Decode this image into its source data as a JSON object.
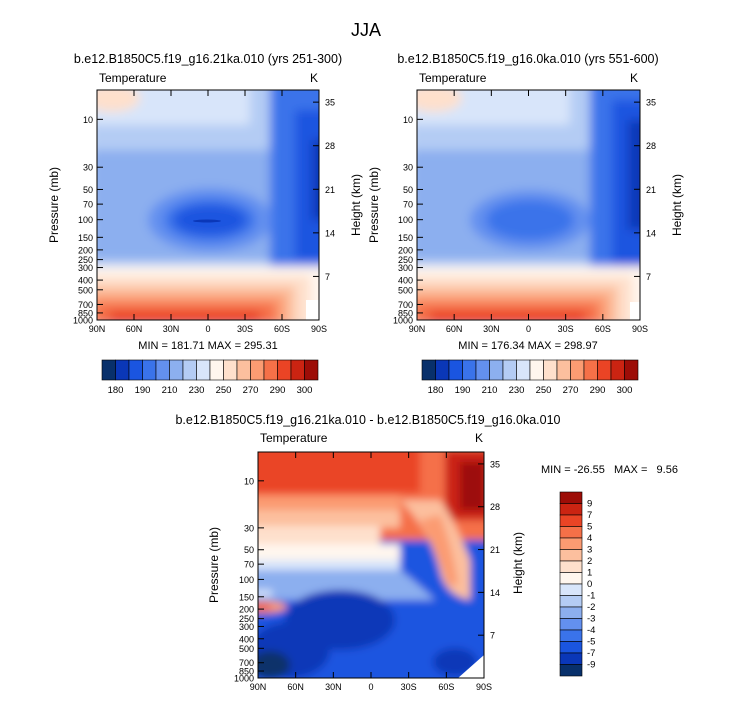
{
  "figure": {
    "title": "JJA"
  },
  "colors": {
    "scale": [
      "#08306b",
      "#0a37b8",
      "#1a55e0",
      "#3a73ea",
      "#6390ef",
      "#8cafef",
      "#b4ccf4",
      "#d8e5fa",
      "#fff6ee",
      "#fee0cc",
      "#fcbf9e",
      "#fb9b72",
      "#f57048",
      "#ea4425",
      "#cb2412",
      "#9d0d07"
    ],
    "diff_scale": [
      "#08306b",
      "#0a37b8",
      "#1a55e0",
      "#3a73ea",
      "#6390ef",
      "#8cafef",
      "#b4ccf4",
      "#d8e5fa",
      "#fff6ee",
      "#fee0cc",
      "#fcbf9e",
      "#fb9b72",
      "#f57048",
      "#ea4425",
      "#cb2412",
      "#9d0d07"
    ]
  },
  "chart_data": [
    {
      "type": "heatmap",
      "title": "b.e12.B1850C5.f19_g16.21ka.010 (yrs 251-300)",
      "variable": "Temperature",
      "units": "K",
      "xlabel": "",
      "ylabel": "Pressure (mb)",
      "y2label": "Height (km)",
      "x_ticks": [
        "90N",
        "60N",
        "30N",
        "0",
        "30S",
        "60S",
        "90S"
      ],
      "y_ticks": [
        "10",
        "30",
        "50",
        "70",
        "100",
        "150",
        "200",
        "250",
        "300",
        "400",
        "500",
        "700",
        "850",
        "1000"
      ],
      "y2_ticks": [
        "35",
        "28",
        "21",
        "14",
        "7"
      ],
      "stats": "MIN = 181.71   MAX = 295.31",
      "colorbar_labels": [
        "180",
        "190",
        "210",
        "230",
        "250",
        "270",
        "290",
        "300"
      ]
    },
    {
      "type": "heatmap",
      "title": "b.e12.B1850C5.f19_g16.0ka.010 (yrs 551-600)",
      "variable": "Temperature",
      "units": "K",
      "xlabel": "",
      "ylabel": "Pressure (mb)",
      "y2label": "Height (km)",
      "x_ticks": [
        "90N",
        "60N",
        "30N",
        "0",
        "30S",
        "60S",
        "90S"
      ],
      "y_ticks": [
        "10",
        "30",
        "50",
        "70",
        "100",
        "150",
        "200",
        "250",
        "300",
        "400",
        "500",
        "700",
        "850",
        "1000"
      ],
      "y2_ticks": [
        "35",
        "28",
        "21",
        "14",
        "7"
      ],
      "stats": "MIN = 176.34   MAX = 298.97",
      "colorbar_labels": [
        "180",
        "190",
        "210",
        "230",
        "250",
        "270",
        "290",
        "300"
      ]
    },
    {
      "type": "heatmap",
      "title": "b.e12.B1850C5.f19_g16.21ka.010 - b.e12.B1850C5.f19_g16.0ka.010",
      "variable": "Temperature",
      "units": "K",
      "xlabel": "",
      "ylabel": "Pressure (mb)",
      "y2label": "Height (km)",
      "x_ticks": [
        "90N",
        "60N",
        "30N",
        "0",
        "30S",
        "60S",
        "90S"
      ],
      "y_ticks": [
        "10",
        "30",
        "50",
        "70",
        "100",
        "150",
        "200",
        "250",
        "300",
        "400",
        "500",
        "700",
        "850",
        "1000"
      ],
      "y2_ticks": [
        "35",
        "28",
        "21",
        "14",
        "7"
      ],
      "stats": "MIN = -26.55   MAX =   9.56",
      "colorbar_labels": [
        "9",
        "7",
        "5",
        "4",
        "3",
        "2",
        "1",
        "0",
        "-1",
        "-2",
        "-3",
        "-4",
        "-5",
        "-7",
        "-9"
      ]
    }
  ]
}
